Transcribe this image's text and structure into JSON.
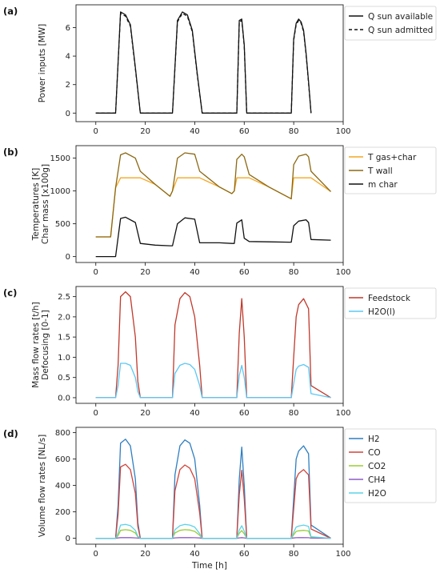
{
  "chart_data": [
    {
      "panel": "(a)",
      "type": "line",
      "ylabel": [
        "Power inputs [MW]"
      ],
      "xlabel": "",
      "xlim": [
        -8,
        100
      ],
      "ylim": [
        -0.6,
        7.6
      ],
      "xticks": [
        0,
        20,
        40,
        60,
        80,
        100
      ],
      "yticks": [
        0,
        2,
        4,
        6
      ],
      "legend": "top-right-outside",
      "x": [
        0,
        8,
        10,
        12,
        14,
        16,
        18,
        31,
        33,
        35,
        37,
        39,
        41,
        43,
        57,
        58,
        59,
        60,
        61,
        79,
        80,
        81,
        82,
        83,
        84,
        85,
        86,
        87
      ],
      "series": [
        {
          "name": "Q sun available",
          "style": "solid",
          "color": "#111111",
          "values": [
            0,
            0,
            7.1,
            6.9,
            6.2,
            3.2,
            0,
            0,
            6.5,
            7.1,
            6.9,
            5.8,
            2.8,
            0,
            0,
            6.5,
            6.6,
            4.8,
            0,
            0,
            5.2,
            6.3,
            6.6,
            6.4,
            5.8,
            4.2,
            2.2,
            0
          ]
        },
        {
          "name": "Q sun admitted",
          "style": "dashed",
          "color": "#111111",
          "values": [
            0,
            0,
            7.0,
            6.8,
            6.1,
            3.1,
            0,
            0,
            6.4,
            7.0,
            6.8,
            5.7,
            2.7,
            0,
            0,
            6.4,
            6.5,
            4.7,
            0,
            0,
            5.1,
            6.2,
            6.5,
            6.3,
            5.7,
            4.1,
            2.1,
            0
          ]
        }
      ]
    },
    {
      "panel": "(b)",
      "type": "line",
      "ylabel": [
        "Temperatures [K]",
        "Char mass [x100g]"
      ],
      "xlabel": "",
      "xlim": [
        -8,
        100
      ],
      "ylim": [
        -90,
        1690
      ],
      "xticks": [
        0,
        20,
        40,
        60,
        80,
        100
      ],
      "yticks": [
        0,
        500,
        1000,
        1500
      ],
      "legend": "top-right-outside",
      "x": [
        0,
        6,
        8,
        10,
        12,
        16,
        18,
        24,
        30,
        31,
        33,
        36,
        40,
        42,
        50,
        55,
        56,
        57,
        59,
        60,
        62,
        70,
        78,
        79,
        80,
        82,
        85,
        86,
        87,
        95
      ],
      "series": [
        {
          "name": "T gas+char",
          "color": "#f5a623",
          "values": [
            300,
            300,
            1050,
            1200,
            1200,
            1200,
            1200,
            1100,
            920,
            1000,
            1200,
            1200,
            1200,
            1200,
            1060,
            960,
            1000,
            1200,
            1200,
            1200,
            1200,
            1060,
            900,
            880,
            1200,
            1200,
            1200,
            1200,
            1200,
            990
          ]
        },
        {
          "name": "T wall",
          "color": "#8b6914",
          "values": [
            300,
            300,
            1050,
            1550,
            1580,
            1500,
            1300,
            1100,
            920,
            1000,
            1500,
            1580,
            1560,
            1300,
            1060,
            960,
            1000,
            1480,
            1560,
            1520,
            1250,
            1060,
            900,
            880,
            1400,
            1530,
            1560,
            1520,
            1300,
            990
          ]
        },
        {
          "name": "m char",
          "color": "#111111",
          "values": [
            0,
            0,
            0,
            580,
            600,
            520,
            200,
            175,
            165,
            165,
            500,
            590,
            570,
            210,
            210,
            200,
            200,
            510,
            560,
            280,
            230,
            225,
            220,
            220,
            470,
            540,
            560,
            520,
            260,
            250
          ]
        }
      ]
    },
    {
      "panel": "(c)",
      "type": "line",
      "ylabel": [
        "Mass flow rates [t/h]",
        "Defocusing [0-1]"
      ],
      "xlabel": "",
      "xlim": [
        -8,
        100
      ],
      "ylim": [
        -0.14,
        2.75
      ],
      "xticks": [
        0,
        20,
        40,
        60,
        80,
        100
      ],
      "yticks": [
        0.0,
        0.5,
        1.0,
        1.5,
        2.0,
        2.5
      ],
      "legend": "top-right-outside",
      "x": [
        0,
        8,
        9,
        10,
        12,
        14,
        16,
        17,
        18,
        31,
        32,
        34,
        36,
        38,
        40,
        42,
        43,
        57,
        58,
        59,
        60,
        61,
        79,
        80,
        81,
        82,
        84,
        86,
        87,
        95
      ],
      "series": [
        {
          "name": "Feedstock",
          "color": "#c0392b",
          "values": [
            0,
            0,
            0.8,
            2.5,
            2.62,
            2.5,
            1.5,
            0.4,
            0,
            0,
            1.8,
            2.45,
            2.6,
            2.5,
            2.0,
            0.8,
            0,
            0,
            1.6,
            2.45,
            1.5,
            0,
            0,
            1.0,
            2.0,
            2.3,
            2.45,
            2.2,
            0.3,
            0
          ]
        },
        {
          "name": "H2O(l)",
          "color": "#5bc8f5",
          "values": [
            0,
            0,
            0.3,
            0.85,
            0.85,
            0.8,
            0.5,
            0.15,
            0,
            0,
            0.6,
            0.8,
            0.85,
            0.82,
            0.7,
            0.3,
            0,
            0,
            0.55,
            0.8,
            0.5,
            0,
            0,
            0.35,
            0.7,
            0.78,
            0.82,
            0.75,
            0.1,
            0
          ]
        }
      ]
    },
    {
      "panel": "(d)",
      "type": "line",
      "ylabel": [
        "Volume flow rates [NL/s]"
      ],
      "xlabel": "Time [h]",
      "xlim": [
        -8,
        100
      ],
      "ylim": [
        -45,
        840
      ],
      "xticks": [
        0,
        20,
        40,
        60,
        80,
        100
      ],
      "yticks": [
        0,
        200,
        400,
        600,
        800
      ],
      "legend": "top-right-outside",
      "x": [
        0,
        8,
        9,
        10,
        12,
        14,
        16,
        17,
        18,
        31,
        32,
        34,
        36,
        38,
        40,
        42,
        43,
        57,
        58,
        59,
        60,
        61,
        79,
        80,
        81,
        82,
        84,
        86,
        87,
        95
      ],
      "series": [
        {
          "name": "H2",
          "color": "#2f7fc1",
          "values": [
            0,
            0,
            250,
            720,
            750,
            700,
            450,
            120,
            0,
            0,
            480,
            700,
            745,
            720,
            600,
            250,
            0,
            0,
            450,
            690,
            400,
            0,
            0,
            300,
            600,
            660,
            700,
            640,
            100,
            0
          ]
        },
        {
          "name": "CO",
          "color": "#d0443c",
          "values": [
            0,
            0,
            180,
            540,
            560,
            520,
            340,
            90,
            0,
            0,
            360,
            520,
            555,
            530,
            450,
            190,
            0,
            0,
            330,
            515,
            300,
            0,
            0,
            220,
            450,
            490,
            520,
            480,
            70,
            0
          ]
        },
        {
          "name": "CO2",
          "color": "#9acd32",
          "values": [
            0,
            0,
            20,
            60,
            65,
            60,
            40,
            10,
            0,
            0,
            40,
            60,
            65,
            62,
            52,
            22,
            0,
            0,
            38,
            58,
            34,
            0,
            0,
            26,
            52,
            56,
            60,
            55,
            8,
            0
          ]
        },
        {
          "name": "CH4",
          "color": "#8e5cc7",
          "values": [
            0,
            0,
            2,
            5,
            5,
            5,
            3,
            1,
            0,
            0,
            3,
            5,
            5,
            5,
            4,
            2,
            0,
            0,
            3,
            5,
            3,
            0,
            0,
            2,
            4,
            5,
            5,
            4,
            1,
            0
          ]
        },
        {
          "name": "H2O",
          "color": "#5bd3e8",
          "values": [
            0,
            0,
            40,
            100,
            105,
            95,
            60,
            15,
            0,
            0,
            65,
            95,
            105,
            100,
            85,
            35,
            0,
            0,
            62,
            95,
            55,
            0,
            0,
            45,
            85,
            92,
            100,
            90,
            12,
            0
          ]
        }
      ]
    }
  ]
}
